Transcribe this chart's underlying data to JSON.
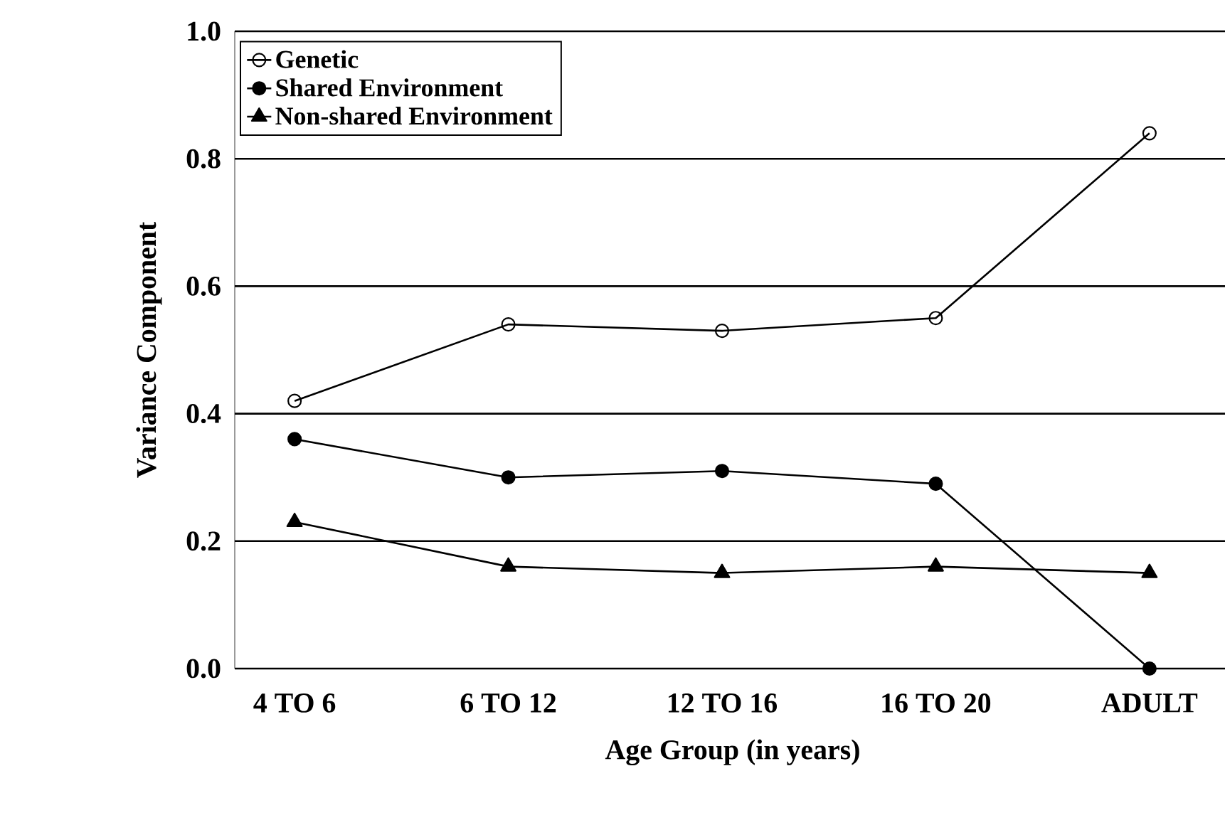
{
  "chart_data": {
    "type": "line",
    "xlabel": "Age Group (in years)",
    "ylabel": "Variance Component",
    "categories": [
      "4 TO 6",
      "6 TO 12",
      "12 TO 16",
      "16 TO 20",
      "ADULT"
    ],
    "series": [
      {
        "name": "Genetic",
        "color": "#000000",
        "marker": "open circle",
        "values": [
          0.42,
          0.54,
          0.53,
          0.55,
          0.84
        ]
      },
      {
        "name": "Shared Environment",
        "color": "#000000",
        "marker": "circle",
        "values": [
          0.36,
          0.3,
          0.31,
          0.29,
          0.0
        ]
      },
      {
        "name": "Non-shared Environment",
        "color": "#000000",
        "marker": "triangle",
        "values": [
          0.23,
          0.16,
          0.15,
          0.16,
          0.15
        ]
      }
    ],
    "ylim": [
      0,
      1
    ],
    "yticks": [
      {
        "value": 0,
        "label": "0.0"
      },
      {
        "value": 0.2,
        "label": "0.2"
      },
      {
        "value": 0.4,
        "label": "0.4"
      },
      {
        "value": 0.6,
        "label": "0.6"
      },
      {
        "value": 0.8,
        "label": "0.8"
      },
      {
        "value": 1,
        "label": "1.0"
      }
    ],
    "grid": "y",
    "legend": "top left",
    "line_style": "solid"
  }
}
